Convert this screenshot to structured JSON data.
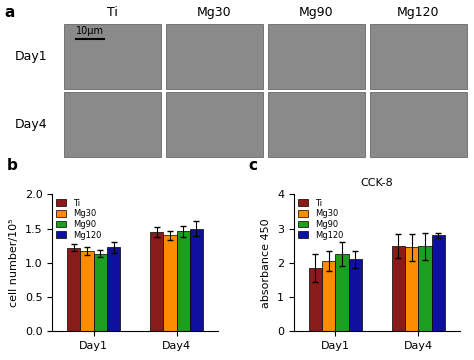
{
  "image_panel": {
    "label": "a",
    "columns": [
      "Ti",
      "Mg30",
      "Mg90",
      "Mg120"
    ],
    "rows": [
      "Day1",
      "Day4"
    ],
    "scale_bar": "10μm"
  },
  "chart_data": [
    {
      "type": "bar",
      "annotation": "b",
      "y_label": "cell number/10⁵",
      "categories": [
        "Day1",
        "Day4"
      ],
      "series": [
        {
          "name": "Ti",
          "color": "#8b1a1a",
          "values": [
            1.22,
            1.45
          ],
          "errors": [
            0.05,
            0.08
          ]
        },
        {
          "name": "Mg30",
          "color": "#ff8c00",
          "values": [
            1.17,
            1.4
          ],
          "errors": [
            0.06,
            0.07
          ]
        },
        {
          "name": "Mg90",
          "color": "#1e9e1e",
          "values": [
            1.13,
            1.46
          ],
          "errors": [
            0.05,
            0.08
          ]
        },
        {
          "name": "Mg120",
          "color": "#1010a0",
          "values": [
            1.23,
            1.5
          ],
          "errors": [
            0.08,
            0.11
          ]
        }
      ],
      "ylim": [
        0,
        2
      ],
      "yticks": [
        {
          "value": 0,
          "label": "0.0"
        },
        {
          "value": 0.5,
          "label": "0.5"
        },
        {
          "value": 1,
          "label": "1.0"
        },
        {
          "value": 1.5,
          "label": "1.5"
        },
        {
          "value": 2,
          "label": "2.0"
        }
      ],
      "legend": "upper left"
    },
    {
      "type": "bar",
      "annotation": "c",
      "title": "CCK-8",
      "y_label": "absorbance 450",
      "categories": [
        "Day1",
        "Day4"
      ],
      "series": [
        {
          "name": "Ti",
          "color": "#8b1a1a",
          "values": [
            1.85,
            2.5
          ],
          "errors": [
            0.4,
            0.35
          ]
        },
        {
          "name": "Mg30",
          "color": "#ff8c00",
          "values": [
            2.05,
            2.45
          ],
          "errors": [
            0.3,
            0.4
          ]
        },
        {
          "name": "Mg90",
          "color": "#1e9e1e",
          "values": [
            2.25,
            2.48
          ],
          "errors": [
            0.35,
            0.4
          ]
        },
        {
          "name": "Mg120",
          "color": "#1010a0",
          "values": [
            2.1,
            2.8
          ],
          "errors": [
            0.25,
            0.08
          ]
        }
      ],
      "ylim": [
        0,
        4
      ],
      "yticks": [
        0,
        1,
        2,
        3,
        4
      ],
      "legend": "upper left"
    }
  ]
}
